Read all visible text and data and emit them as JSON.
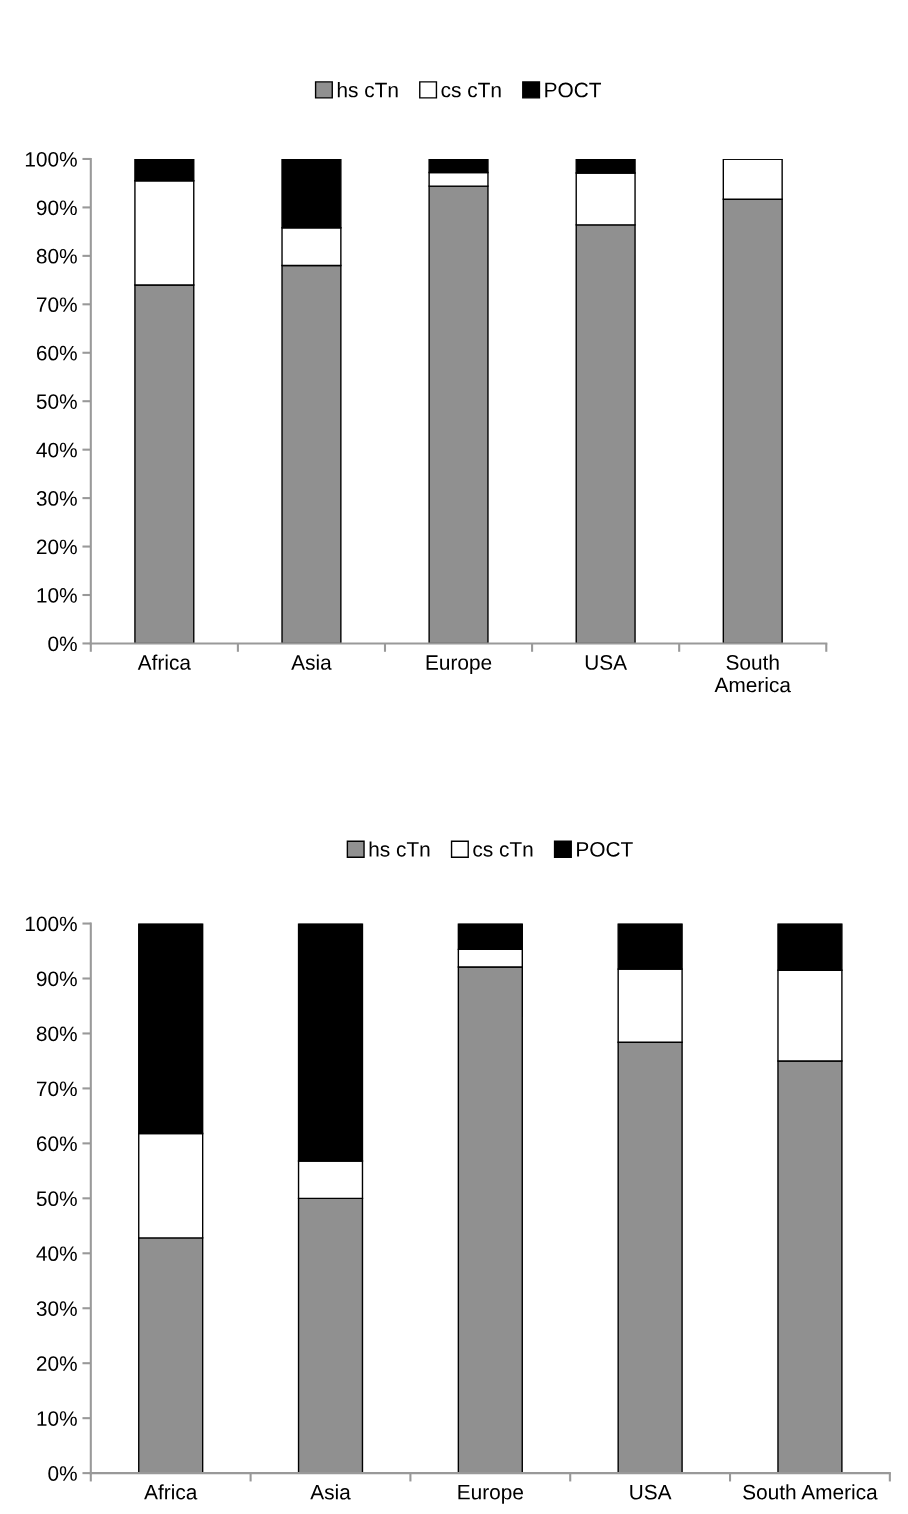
{
  "chart_data": [
    {
      "type": "bar",
      "stacked": true,
      "categories": [
        "Africa",
        "Asia",
        "Europe",
        "USA",
        "South\nAmerica"
      ],
      "series": [
        {
          "name": "hs cTn",
          "color": "#909090",
          "values": [
            74,
            78,
            94.4,
            86.4,
            91.7
          ]
        },
        {
          "name": "cs cTn",
          "color": "#ffffff",
          "values": [
            21.5,
            7.8,
            2.8,
            10.7,
            8.3
          ]
        },
        {
          "name": "POCT",
          "color": "#000000",
          "values": [
            4.5,
            14.2,
            2.8,
            2.9,
            0
          ]
        }
      ],
      "ylim": [
        0,
        100
      ],
      "yticks": [
        {
          "value": 0,
          "label": "0%"
        },
        {
          "value": 10,
          "label": "10%"
        },
        {
          "value": 20,
          "label": "20%"
        },
        {
          "value": 30,
          "label": "30%"
        },
        {
          "value": 40,
          "label": "40%"
        },
        {
          "value": 50,
          "label": "50%"
        },
        {
          "value": 60,
          "label": "60%"
        },
        {
          "value": 70,
          "label": "70%"
        },
        {
          "value": 80,
          "label": "80%"
        },
        {
          "value": 90,
          "label": "90%"
        },
        {
          "value": 100,
          "label": "100%"
        }
      ],
      "grid": false,
      "legend": "top"
    },
    {
      "type": "bar",
      "stacked": true,
      "categories": [
        "Africa",
        "Asia",
        "Europe",
        "USA",
        "South America"
      ],
      "series": [
        {
          "name": "hs cTn",
          "color": "#909090",
          "values": [
            42.8,
            50,
            92.1,
            78.4,
            75
          ]
        },
        {
          "name": "cs cTn",
          "color": "#ffffff",
          "values": [
            19,
            6.8,
            3.2,
            13.3,
            16.5
          ]
        },
        {
          "name": "POCT",
          "color": "#000000",
          "values": [
            38.2,
            43.2,
            4.7,
            8.3,
            8.5
          ]
        }
      ],
      "ylim": [
        0,
        100
      ],
      "yticks": [
        {
          "value": 0,
          "label": "0%"
        },
        {
          "value": 10,
          "label": "10%"
        },
        {
          "value": 20,
          "label": "20%"
        },
        {
          "value": 30,
          "label": "30%"
        },
        {
          "value": 40,
          "label": "40%"
        },
        {
          "value": 50,
          "label": "50%"
        },
        {
          "value": 60,
          "label": "60%"
        },
        {
          "value": 70,
          "label": "70%"
        },
        {
          "value": 80,
          "label": "80%"
        },
        {
          "value": 90,
          "label": "90%"
        },
        {
          "value": 100,
          "label": "100%"
        }
      ],
      "grid": false,
      "legend": "top"
    }
  ]
}
